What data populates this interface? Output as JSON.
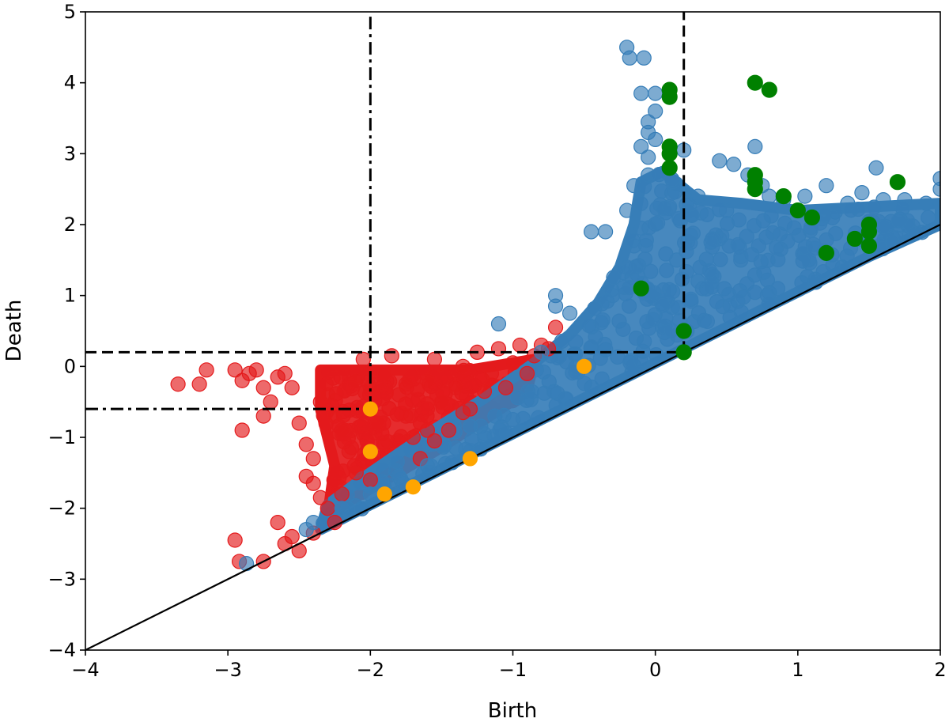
{
  "chart_data": {
    "type": "scatter",
    "title": "",
    "xlabel": "Birth",
    "ylabel": "Death",
    "xlim": [
      -4,
      2
    ],
    "ylim": [
      -4,
      5
    ],
    "xticks": [
      -4,
      -3,
      -2,
      -1,
      0,
      1,
      2
    ],
    "yticks": [
      -4,
      -3,
      -2,
      -1,
      0,
      1,
      2,
      3,
      4,
      5
    ],
    "xtick_labels": [
      "−4",
      "−3",
      "−2",
      "−1",
      "0",
      "1",
      "2"
    ],
    "ytick_labels": [
      "−4",
      "−3",
      "−2",
      "−1",
      "0",
      "1",
      "2",
      "3",
      "4",
      "5"
    ],
    "grid": false,
    "legend": "none",
    "colors": {
      "red_series": "#e41a1c",
      "blue_series": "#377eb8",
      "orange_series": "#ffa500",
      "green_series": "#008000",
      "line": "#000000"
    },
    "diagonal": {
      "from": [
        -4,
        -4
      ],
      "to": [
        2,
        2
      ]
    },
    "reference_lines": [
      {
        "name": "dashed-horizontal",
        "style": "dashed",
        "orientation": "horizontal",
        "y": 0.2,
        "x_range": [
          -4,
          0.2
        ]
      },
      {
        "name": "dashed-vertical",
        "style": "dashed",
        "orientation": "vertical",
        "x": 0.2,
        "y_range": [
          0.2,
          5
        ]
      },
      {
        "name": "dashdot-horizontal",
        "style": "dashdot",
        "orientation": "horizontal",
        "y": -0.6,
        "x_range": [
          -4,
          -2
        ]
      },
      {
        "name": "dashdot-vertical",
        "style": "dashdot",
        "orientation": "vertical",
        "x": -2,
        "y_range": [
          -0.6,
          5
        ]
      }
    ],
    "series": [
      {
        "name": "red",
        "color": "#e41a1c",
        "note": "dense cloud of points roughly spanning birth -3.3 to -0.4, death -2.8 to 0.5",
        "points": [
          [
            -3.35,
            -0.25
          ],
          [
            -3.2,
            -0.25
          ],
          [
            -3.15,
            -0.05
          ],
          [
            -2.95,
            -0.05
          ],
          [
            -2.9,
            -0.2
          ],
          [
            -2.85,
            -0.1
          ],
          [
            -2.8,
            -0.05
          ],
          [
            -2.75,
            -0.3
          ],
          [
            -2.9,
            -0.9
          ],
          [
            -2.75,
            -0.7
          ],
          [
            -2.7,
            -0.5
          ],
          [
            -2.65,
            -0.15
          ],
          [
            -2.6,
            -0.1
          ],
          [
            -2.55,
            -0.3
          ],
          [
            -2.5,
            -0.8
          ],
          [
            -2.45,
            -1.1
          ],
          [
            -2.4,
            -1.3
          ],
          [
            -2.45,
            -1.55
          ],
          [
            -2.4,
            -1.65
          ],
          [
            -2.35,
            -1.85
          ],
          [
            -2.3,
            -2.0
          ],
          [
            -2.25,
            -2.2
          ],
          [
            -2.65,
            -2.2
          ],
          [
            -2.6,
            -2.5
          ],
          [
            -2.55,
            -2.4
          ],
          [
            -2.95,
            -2.45
          ],
          [
            -2.92,
            -2.75
          ],
          [
            -2.75,
            -2.75
          ],
          [
            -2.5,
            -2.6
          ],
          [
            -2.4,
            -2.35
          ],
          [
            -2.35,
            -0.5
          ],
          [
            -2.3,
            -0.4
          ],
          [
            -2.25,
            -0.7
          ],
          [
            -2.2,
            -0.9
          ],
          [
            -2.15,
            -1.2
          ],
          [
            -2.1,
            -1.5
          ],
          [
            -2.1,
            -0.2
          ],
          [
            -2.05,
            0.1
          ],
          [
            -2.0,
            -0.3
          ],
          [
            -1.95,
            -0.8
          ],
          [
            -1.9,
            -1.1
          ],
          [
            -1.9,
            -0.1
          ],
          [
            -1.85,
            0.15
          ],
          [
            -1.8,
            -0.4
          ],
          [
            -1.75,
            -0.7
          ],
          [
            -1.7,
            -1.0
          ],
          [
            -1.65,
            -1.3
          ],
          [
            -1.6,
            -0.2
          ],
          [
            -1.55,
            0.1
          ],
          [
            -1.5,
            -0.5
          ],
          [
            -1.45,
            -0.9
          ],
          [
            -1.4,
            -0.3
          ],
          [
            -1.35,
            0.0
          ],
          [
            -1.3,
            -0.6
          ],
          [
            -1.25,
            0.2
          ],
          [
            -1.2,
            -0.35
          ],
          [
            -1.15,
            -0.1
          ],
          [
            -1.1,
            0.25
          ],
          [
            -1.05,
            -0.3
          ],
          [
            -1.0,
            0.05
          ],
          [
            -0.95,
            0.3
          ],
          [
            -0.9,
            -0.1
          ],
          [
            -0.85,
            0.15
          ],
          [
            -0.8,
            0.3
          ],
          [
            -0.7,
            0.55
          ],
          [
            -0.75,
            0.25
          ],
          [
            -1.6,
            -0.9
          ],
          [
            -1.75,
            -0.25
          ],
          [
            -2.0,
            -1.6
          ],
          [
            -2.2,
            -1.8
          ],
          [
            -1.55,
            -1.05
          ],
          [
            -1.35,
            -0.65
          ]
        ],
        "dense_region": [
          [
            -2.35,
            -0.05
          ],
          [
            -1.3,
            -0.05
          ],
          [
            -0.85,
            0.1
          ],
          [
            -0.9,
            -0.35
          ],
          [
            -1.2,
            -0.75
          ],
          [
            -1.55,
            -1.2
          ],
          [
            -1.85,
            -1.55
          ],
          [
            -2.15,
            -1.9
          ],
          [
            -2.3,
            -2.1
          ],
          [
            -2.25,
            -1.4
          ],
          [
            -2.35,
            -0.6
          ]
        ]
      },
      {
        "name": "blue",
        "color": "#377eb8",
        "note": "dense cloud of points lying above the diagonal from birth -2.9 to 2, with a spike near birth 0",
        "points": [
          [
            -2.87,
            -2.78
          ],
          [
            -2.45,
            -2.3
          ],
          [
            -2.4,
            -2.2
          ],
          [
            -2.2,
            -2.0
          ],
          [
            -2.0,
            -1.8
          ],
          [
            -1.8,
            -1.55
          ],
          [
            -1.6,
            -1.4
          ],
          [
            -1.4,
            -1.15
          ],
          [
            -1.2,
            -0.95
          ],
          [
            -1.0,
            -0.75
          ],
          [
            -1.1,
            0.6
          ],
          [
            -0.8,
            0.2
          ],
          [
            -0.7,
            0.85
          ],
          [
            -0.7,
            1.0
          ],
          [
            -0.6,
            0.75
          ],
          [
            -0.45,
            1.9
          ],
          [
            -0.35,
            1.9
          ],
          [
            -0.3,
            1.0
          ],
          [
            -0.2,
            1.4
          ],
          [
            -0.15,
            1.7
          ],
          [
            -0.1,
            1.95
          ],
          [
            -0.2,
            2.2
          ],
          [
            -0.15,
            2.55
          ],
          [
            -0.05,
            2.7
          ],
          [
            -0.05,
            2.95
          ],
          [
            -0.1,
            3.1
          ],
          [
            -0.05,
            3.3
          ],
          [
            0.0,
            3.2
          ],
          [
            -0.05,
            3.45
          ],
          [
            0.0,
            3.6
          ],
          [
            -0.1,
            3.85
          ],
          [
            0.0,
            3.85
          ],
          [
            -0.2,
            4.5
          ],
          [
            -0.18,
            4.35
          ],
          [
            -0.08,
            4.35
          ],
          [
            0.2,
            3.05
          ],
          [
            0.3,
            2.4
          ],
          [
            0.45,
            2.9
          ],
          [
            0.55,
            2.85
          ],
          [
            0.5,
            2.2
          ],
          [
            0.7,
            3.1
          ],
          [
            0.65,
            2.7
          ],
          [
            0.75,
            2.55
          ],
          [
            0.8,
            2.4
          ],
          [
            0.9,
            2.35
          ],
          [
            1.05,
            2.4
          ],
          [
            1.2,
            2.55
          ],
          [
            1.35,
            2.3
          ],
          [
            1.45,
            2.45
          ],
          [
            1.55,
            2.8
          ],
          [
            1.6,
            2.35
          ],
          [
            1.75,
            2.35
          ],
          [
            1.9,
            2.3
          ],
          [
            2.0,
            2.65
          ],
          [
            2.0,
            2.5
          ],
          [
            0.1,
            2.25
          ],
          [
            0.15,
            1.5
          ],
          [
            0.3,
            1.2
          ],
          [
            0.45,
            1.8
          ],
          [
            0.6,
            1.5
          ]
        ],
        "dense_region": [
          [
            -2.35,
            -2.3
          ],
          [
            -1.5,
            -1.45
          ],
          [
            -0.5,
            -0.45
          ],
          [
            0.5,
            0.55
          ],
          [
            1.5,
            1.55
          ],
          [
            2.0,
            2.0
          ],
          [
            2.0,
            2.3
          ],
          [
            1.5,
            2.25
          ],
          [
            1.0,
            2.2
          ],
          [
            0.6,
            2.3
          ],
          [
            0.3,
            2.35
          ],
          [
            0.05,
            2.75
          ],
          [
            -0.1,
            2.6
          ],
          [
            -0.15,
            2.0
          ],
          [
            -0.25,
            1.4
          ],
          [
            -0.4,
            0.9
          ],
          [
            -0.6,
            0.45
          ],
          [
            -0.85,
            0.05
          ],
          [
            -1.2,
            -0.45
          ],
          [
            -1.6,
            -0.95
          ],
          [
            -2.0,
            -1.5
          ],
          [
            -2.3,
            -1.95
          ]
        ]
      },
      {
        "name": "orange",
        "color": "#ffa500",
        "points": [
          [
            -2.0,
            -0.6
          ],
          [
            -2.0,
            -1.2
          ],
          [
            -1.9,
            -1.8
          ],
          [
            -1.7,
            -1.7
          ],
          [
            -1.3,
            -1.3
          ],
          [
            -0.5,
            0.0
          ]
        ]
      },
      {
        "name": "green",
        "color": "#008000",
        "points": [
          [
            -0.1,
            1.1
          ],
          [
            0.1,
            3.9
          ],
          [
            0.1,
            3.8
          ],
          [
            0.1,
            3.1
          ],
          [
            0.1,
            3.0
          ],
          [
            0.1,
            2.8
          ],
          [
            0.2,
            0.5
          ],
          [
            0.2,
            0.2
          ],
          [
            0.7,
            4.0
          ],
          [
            0.8,
            3.9
          ],
          [
            0.7,
            2.7
          ],
          [
            0.7,
            2.6
          ],
          [
            0.7,
            2.5
          ],
          [
            0.9,
            2.4
          ],
          [
            1.0,
            2.2
          ],
          [
            1.1,
            2.1
          ],
          [
            1.2,
            1.6
          ],
          [
            1.4,
            1.8
          ],
          [
            1.5,
            2.0
          ],
          [
            1.5,
            1.9
          ],
          [
            1.5,
            1.7
          ],
          [
            1.7,
            2.6
          ]
        ]
      }
    ]
  }
}
